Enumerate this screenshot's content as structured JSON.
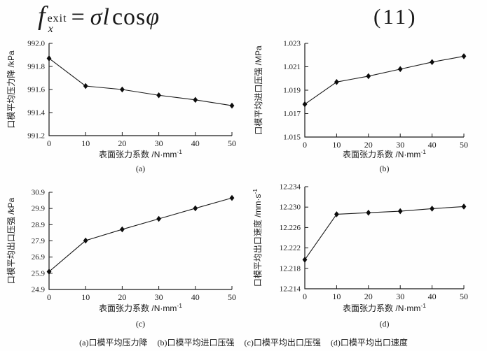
{
  "equation": {
    "symbol": "f",
    "superscript": "exit",
    "subscript": "x",
    "equals": "=",
    "rhs_italic": "σl",
    "rhs_function": "cos",
    "rhs_argument": "φ",
    "number": "(11)"
  },
  "colors": {
    "ink": "#1a1a1a",
    "background": "#fefefe"
  },
  "caption": {
    "items": [
      "(a)口模平均压力降",
      "(b)口模平均进口压强",
      "(c)口模平均出口压强",
      "(d)口模平均出口速度"
    ]
  },
  "chart_data": [
    {
      "type": "line",
      "panel_label": "(a)",
      "title": "口模平均压力降",
      "x": [
        0,
        10,
        20,
        30,
        40,
        50
      ],
      "values": [
        991.87,
        991.63,
        991.6,
        991.55,
        991.51,
        991.46
      ],
      "xlabel": "表面张力系数 /N·mm",
      "xlabel_exp": "-1",
      "ylabel": "口模平均压力降 /kPa",
      "ylabel_exp": "",
      "xlim": [
        0,
        50
      ],
      "ylim": [
        991.2,
        992.0
      ],
      "xticks": [
        "0",
        "10",
        "20",
        "30",
        "40",
        "50"
      ],
      "yticks": [
        "991.2",
        "991.4",
        "991.6",
        "991.8",
        "992.0"
      ],
      "marker": "diamond",
      "grid": false,
      "legend": "none"
    },
    {
      "type": "line",
      "panel_label": "(b)",
      "title": "口模平均进口压强",
      "x": [
        0,
        10,
        20,
        30,
        40,
        50
      ],
      "values": [
        1.0178,
        1.0197,
        1.0202,
        1.0208,
        1.0214,
        1.0219
      ],
      "xlabel": "表面张力系数 /N·mm",
      "xlabel_exp": "-1",
      "ylabel": "口模平均进口压强 /MPa",
      "ylabel_exp": "",
      "xlim": [
        0,
        50
      ],
      "ylim": [
        1.015,
        1.023
      ],
      "xticks": [
        "0",
        "10",
        "20",
        "30",
        "40",
        "50"
      ],
      "yticks": [
        "1.015",
        "1.017",
        "1.019",
        "1.021",
        "1.023"
      ],
      "marker": "diamond",
      "grid": false,
      "legend": "none"
    },
    {
      "type": "line",
      "panel_label": "(c)",
      "title": "口模平均出口压强",
      "x": [
        0,
        10,
        20,
        30,
        40,
        50
      ],
      "values": [
        26.0,
        27.92,
        28.61,
        29.26,
        29.91,
        30.55
      ],
      "xlabel": "表面张力系数 /N·mm",
      "xlabel_exp": "-1",
      "ylabel": "口模平均出口压强 /kPa",
      "ylabel_exp": "",
      "xlim": [
        0,
        50
      ],
      "ylim": [
        24.9,
        30.9
      ],
      "xticks": [
        "0",
        "10",
        "20",
        "30",
        "40",
        "50"
      ],
      "yticks": [
        "24.9",
        "25.9",
        "26.9",
        "27.9",
        "28.9",
        "29.9",
        "30.9"
      ],
      "marker": "diamond",
      "grid": false,
      "legend": "none"
    },
    {
      "type": "line",
      "panel_label": "(d)",
      "title": "口模平均出口速度",
      "x": [
        0,
        10,
        20,
        30,
        40,
        50
      ],
      "values": [
        12.2197,
        12.2286,
        12.2289,
        12.2292,
        12.2297,
        12.2301
      ],
      "xlabel": "表面张力系数 /N·mm",
      "xlabel_exp": "-1",
      "ylabel": "口模平均出口速度 /mm·s",
      "ylabel_exp": "-1",
      "xlim": [
        0,
        50
      ],
      "ylim": [
        12.214,
        12.234
      ],
      "xticks": [
        "0",
        "10",
        "20",
        "30",
        "40",
        "50"
      ],
      "yticks": [
        "12.214",
        "12.218",
        "12.222",
        "12.226",
        "12.230",
        "12.234"
      ],
      "marker": "diamond",
      "grid": false,
      "legend": "none"
    }
  ]
}
